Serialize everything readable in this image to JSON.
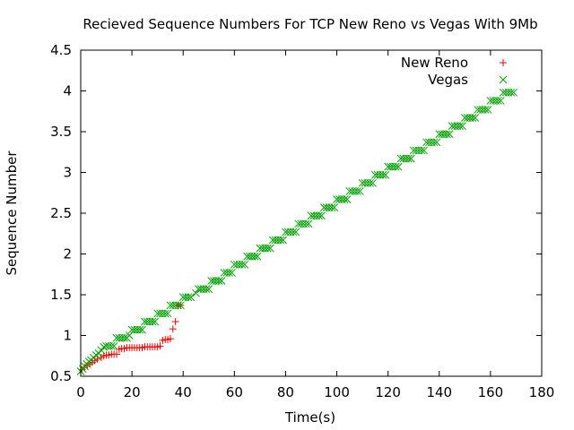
{
  "chart_data": {
    "type": "scatter",
    "title": "Recieved Sequence Numbers For TCP New Reno vs Vegas With 9Mb",
    "xlabel": "Time(s)",
    "ylabel": "Sequence Number",
    "xlim": [
      0,
      180
    ],
    "ylim": [
      0.5,
      4.5
    ],
    "x_ticks": [
      "0",
      "20",
      "40",
      "60",
      "80",
      "100",
      "120",
      "140",
      "160",
      "180"
    ],
    "y_ticks": [
      "0.5",
      "1",
      "1.5",
      "2",
      "2.5",
      "3",
      "3.5",
      "4",
      "4.5"
    ],
    "grid": false,
    "legend_position": "top-right",
    "series": [
      {
        "name": "New Reno",
        "marker": "+",
        "color": "#ff0000",
        "points": [
          [
            0.5,
            0.58
          ],
          [
            1.5,
            0.61
          ],
          [
            2.5,
            0.63
          ],
          [
            3.5,
            0.65
          ],
          [
            4.5,
            0.67
          ],
          [
            5.5,
            0.69
          ],
          [
            6.5,
            0.71
          ],
          [
            8,
            0.73
          ],
          [
            9,
            0.75
          ],
          [
            10,
            0.76
          ],
          [
            11,
            0.76
          ],
          [
            12,
            0.77
          ],
          [
            13,
            0.77
          ],
          [
            14,
            0.77
          ],
          [
            15,
            0.83
          ],
          [
            16,
            0.84
          ],
          [
            17,
            0.84
          ],
          [
            18,
            0.85
          ],
          [
            19,
            0.85
          ],
          [
            20,
            0.85
          ],
          [
            21,
            0.85
          ],
          [
            22,
            0.85
          ],
          [
            23,
            0.85
          ],
          [
            24,
            0.85
          ],
          [
            25,
            0.86
          ],
          [
            26,
            0.86
          ],
          [
            27,
            0.86
          ],
          [
            28,
            0.86
          ],
          [
            29,
            0.86
          ],
          [
            30,
            0.86
          ],
          [
            31,
            0.87
          ],
          [
            32,
            0.94
          ],
          [
            33,
            0.95
          ],
          [
            34,
            0.95
          ],
          [
            35,
            0.96
          ],
          [
            36,
            1.08
          ],
          [
            37,
            1.17
          ],
          [
            38,
            1.37
          ],
          [
            39,
            1.37
          ]
        ]
      },
      {
        "name": "Vegas",
        "marker": "x",
        "color": "#00a000",
        "points": [
          [
            0,
            0.56
          ],
          [
            0.8,
            0.59
          ],
          [
            1.6,
            0.62
          ],
          [
            2.4,
            0.65
          ],
          [
            3.2,
            0.68
          ],
          [
            4,
            0.7
          ],
          [
            5,
            0.73
          ],
          [
            6,
            0.76
          ],
          [
            7,
            0.78
          ],
          [
            8,
            0.82
          ],
          [
            9,
            0.86
          ],
          [
            10,
            0.87
          ],
          [
            11,
            0.87
          ],
          [
            12,
            0.87
          ],
          [
            13,
            0.87
          ],
          [
            14,
            0.97
          ],
          [
            15,
            0.97
          ],
          [
            16,
            0.97
          ],
          [
            17,
            0.97
          ],
          [
            18,
            0.97
          ],
          [
            19,
            1.0
          ],
          [
            20,
            1.07
          ],
          [
            21,
            1.07
          ],
          [
            22,
            1.07
          ],
          [
            23,
            1.07
          ],
          [
            24,
            1.07
          ],
          [
            25,
            1.17
          ],
          [
            26,
            1.17
          ],
          [
            27,
            1.17
          ],
          [
            28,
            1.17
          ],
          [
            29,
            1.17
          ],
          [
            30,
            1.27
          ],
          [
            31,
            1.27
          ],
          [
            32,
            1.27
          ],
          [
            33,
            1.27
          ],
          [
            34,
            1.27
          ],
          [
            35,
            1.37
          ],
          [
            36,
            1.37
          ],
          [
            37,
            1.37
          ],
          [
            38,
            1.37
          ],
          [
            39,
            1.37
          ],
          [
            40,
            1.47
          ],
          [
            41,
            1.47
          ],
          [
            42,
            1.47
          ],
          [
            43,
            1.47
          ],
          [
            45,
            1.52
          ],
          [
            46,
            1.57
          ],
          [
            47,
            1.57
          ],
          [
            48,
            1.57
          ],
          [
            49,
            1.57
          ],
          [
            50,
            1.57
          ],
          [
            51,
            1.67
          ],
          [
            52,
            1.67
          ],
          [
            53,
            1.67
          ],
          [
            54,
            1.67
          ],
          [
            55,
            1.67
          ],
          [
            56,
            1.77
          ],
          [
            57,
            1.77
          ],
          [
            58,
            1.77
          ],
          [
            59,
            1.77
          ],
          [
            60,
            1.87
          ],
          [
            61,
            1.87
          ],
          [
            62,
            1.87
          ],
          [
            63,
            1.87
          ],
          [
            64,
            1.87
          ],
          [
            65,
            1.97
          ],
          [
            66,
            1.97
          ],
          [
            67,
            1.97
          ],
          [
            68,
            1.97
          ],
          [
            69,
            1.97
          ],
          [
            70,
            2.07
          ],
          [
            71,
            2.07
          ],
          [
            72,
            2.07
          ],
          [
            73,
            2.07
          ],
          [
            74,
            2.07
          ],
          [
            75,
            2.17
          ],
          [
            76,
            2.17
          ],
          [
            77,
            2.17
          ],
          [
            78,
            2.17
          ],
          [
            79,
            2.17
          ],
          [
            80,
            2.27
          ],
          [
            81,
            2.27
          ],
          [
            82,
            2.27
          ],
          [
            83,
            2.27
          ],
          [
            84,
            2.27
          ],
          [
            85,
            2.37
          ],
          [
            86,
            2.37
          ],
          [
            87,
            2.37
          ],
          [
            88,
            2.37
          ],
          [
            89,
            2.37
          ],
          [
            90,
            2.47
          ],
          [
            91,
            2.47
          ],
          [
            92,
            2.47
          ],
          [
            93,
            2.47
          ],
          [
            94,
            2.47
          ],
          [
            95,
            2.57
          ],
          [
            96,
            2.57
          ],
          [
            97,
            2.57
          ],
          [
            98,
            2.57
          ],
          [
            99,
            2.57
          ],
          [
            100,
            2.67
          ],
          [
            101,
            2.67
          ],
          [
            102,
            2.67
          ],
          [
            103,
            2.67
          ],
          [
            104,
            2.67
          ],
          [
            105,
            2.77
          ],
          [
            106,
            2.77
          ],
          [
            107,
            2.77
          ],
          [
            108,
            2.77
          ],
          [
            109,
            2.77
          ],
          [
            110,
            2.87
          ],
          [
            111,
            2.87
          ],
          [
            112,
            2.87
          ],
          [
            113,
            2.87
          ],
          [
            114,
            2.87
          ],
          [
            115,
            2.97
          ],
          [
            116,
            2.97
          ],
          [
            117,
            2.97
          ],
          [
            118,
            2.97
          ],
          [
            119,
            2.97
          ],
          [
            120,
            3.07
          ],
          [
            121,
            3.07
          ],
          [
            122,
            3.07
          ],
          [
            123,
            3.07
          ],
          [
            124,
            3.07
          ],
          [
            125,
            3.17
          ],
          [
            126,
            3.17
          ],
          [
            127,
            3.17
          ],
          [
            128,
            3.17
          ],
          [
            129,
            3.17
          ],
          [
            130,
            3.27
          ],
          [
            131,
            3.27
          ],
          [
            132,
            3.27
          ],
          [
            133,
            3.27
          ],
          [
            134,
            3.27
          ],
          [
            135,
            3.37
          ],
          [
            136,
            3.37
          ],
          [
            137,
            3.37
          ],
          [
            138,
            3.37
          ],
          [
            139,
            3.37
          ],
          [
            140,
            3.47
          ],
          [
            141,
            3.47
          ],
          [
            142,
            3.47
          ],
          [
            143,
            3.47
          ],
          [
            144,
            3.47
          ],
          [
            145,
            3.57
          ],
          [
            146,
            3.57
          ],
          [
            147,
            3.57
          ],
          [
            148,
            3.57
          ],
          [
            149,
            3.57
          ],
          [
            150,
            3.67
          ],
          [
            151,
            3.67
          ],
          [
            152,
            3.67
          ],
          [
            153,
            3.67
          ],
          [
            154,
            3.67
          ],
          [
            155,
            3.77
          ],
          [
            156,
            3.77
          ],
          [
            157,
            3.77
          ],
          [
            158,
            3.77
          ],
          [
            159,
            3.77
          ],
          [
            160,
            3.88
          ],
          [
            161,
            3.88
          ],
          [
            162,
            3.88
          ],
          [
            163,
            3.88
          ],
          [
            164,
            3.88
          ],
          [
            165,
            3.98
          ],
          [
            166,
            3.98
          ],
          [
            167,
            3.98
          ],
          [
            168,
            3.98
          ],
          [
            169,
            3.98
          ]
        ]
      }
    ]
  }
}
